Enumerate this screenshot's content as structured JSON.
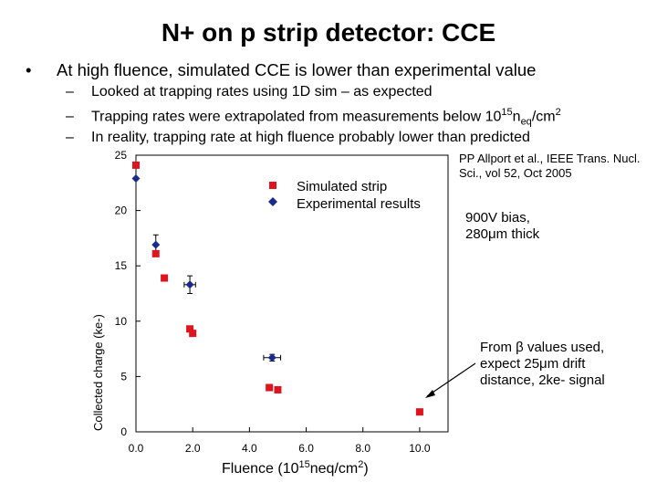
{
  "slide": {
    "title": "N+ on p strip detector: CCE",
    "bullet": "At high fluence, simulated CCE is lower than experimental value",
    "subs": [
      {
        "text": "Looked at trapping rates using 1D sim – as expected"
      },
      {
        "pre": "Trapping rates were extrapolated from measurements below 10",
        "sup": "15",
        "mid": "n",
        "sub": "eq",
        "post": "/cm",
        "sup2": "2"
      },
      {
        "text": "In reality, trapping rate at high fluence probably lower than predicted"
      }
    ],
    "reference": "PP Allport et al., IEEE Trans. Nucl. Sci., vol 52, Oct 2005",
    "bias_note": [
      "900V bias,",
      "280μm thick"
    ],
    "beta_note": [
      "From β values used,",
      "expect 25μm drift",
      "distance, 2ke- signal"
    ]
  },
  "chart_data": {
    "type": "scatter",
    "title": "",
    "xlabel": "Fluence (10^15 neq/cm^2)",
    "xlabel_parts": {
      "pre": "Fluence (10",
      "sup": "15",
      "mid": "neq/cm",
      "sup2": "2",
      "post": ")"
    },
    "ylabel": "Collected charge (ke-)",
    "xlim": [
      0,
      11
    ],
    "ylim": [
      0,
      25
    ],
    "x_ticks": [
      "0.0",
      "2.0",
      "4.0",
      "6.0",
      "8.0",
      "10.0"
    ],
    "x_tick_values": [
      0,
      2,
      4,
      6,
      8,
      10
    ],
    "y_ticks": [
      "0",
      "5",
      "10",
      "15",
      "20",
      "25"
    ],
    "y_tick_values": [
      0,
      5,
      10,
      15,
      20,
      25
    ],
    "legend_position": "top-right",
    "series": [
      {
        "name": "Simulated strip",
        "marker": "square",
        "color": "#e0141e",
        "points": [
          {
            "x": 0.0,
            "y": 24.1
          },
          {
            "x": 0.7,
            "y": 16.1
          },
          {
            "x": 1.0,
            "y": 13.9
          },
          {
            "x": 1.9,
            "y": 9.3
          },
          {
            "x": 2.0,
            "y": 8.9
          },
          {
            "x": 4.7,
            "y": 4.0
          },
          {
            "x": 5.0,
            "y": 3.8
          },
          {
            "x": 10.0,
            "y": 1.8
          }
        ]
      },
      {
        "name": "Experimental results",
        "marker": "diamond",
        "color": "#1a2a8c",
        "points": [
          {
            "x": 0.0,
            "y": 22.9,
            "yerr": 0.0,
            "xerr": 0.0
          },
          {
            "x": 0.7,
            "y": 16.9,
            "yerr": 0.9,
            "xerr": 0.0
          },
          {
            "x": 1.9,
            "y": 13.3,
            "yerr": 0.8,
            "xerr": 0.2
          },
          {
            "x": 4.8,
            "y": 6.7,
            "yerr": 0.3,
            "xerr": 0.3
          }
        ]
      }
    ]
  }
}
